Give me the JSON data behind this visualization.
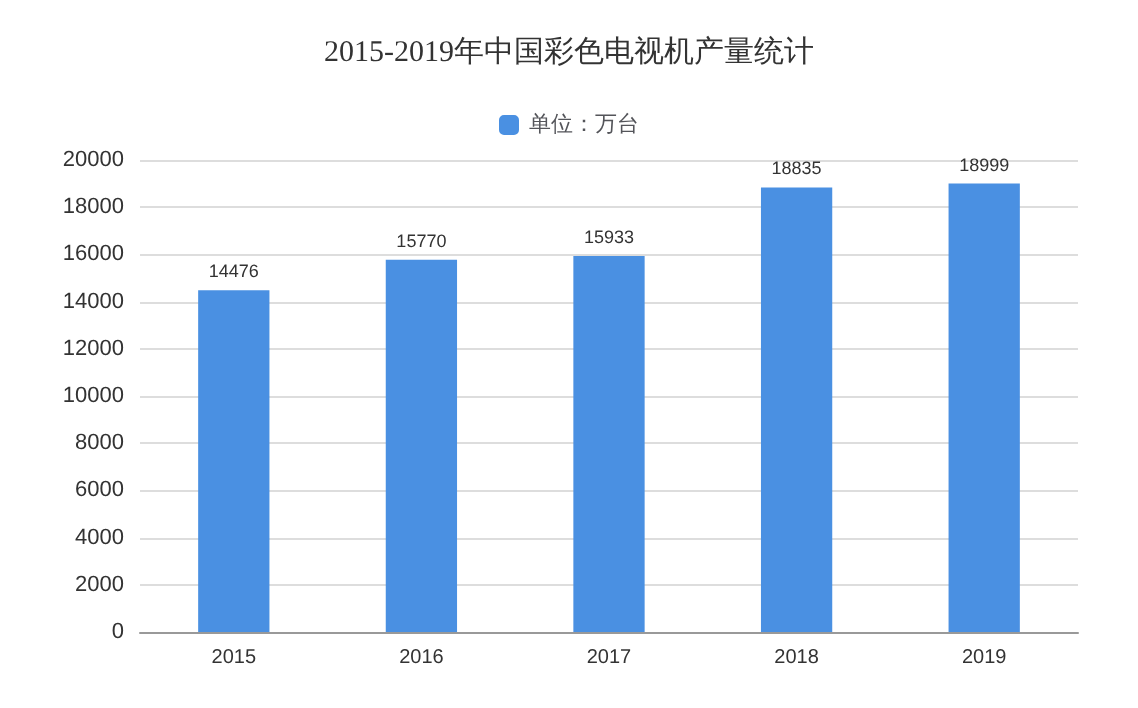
{
  "chart_data": {
    "type": "bar",
    "title": "2015-2019年中国彩色电视机产量统计",
    "categories": [
      "2015",
      "2016",
      "2017",
      "2018",
      "2019"
    ],
    "series": [
      {
        "name": "单位：万台",
        "color": "#4a90e2",
        "values": [
          14476,
          15770,
          15933,
          18835,
          18999
        ]
      }
    ],
    "ylim": [
      0,
      20000
    ],
    "yticks": [
      0,
      2000,
      4000,
      6000,
      8000,
      10000,
      12000,
      14000,
      16000,
      18000,
      20000
    ],
    "grid": "y",
    "legend": "top",
    "data_labels": true
  }
}
